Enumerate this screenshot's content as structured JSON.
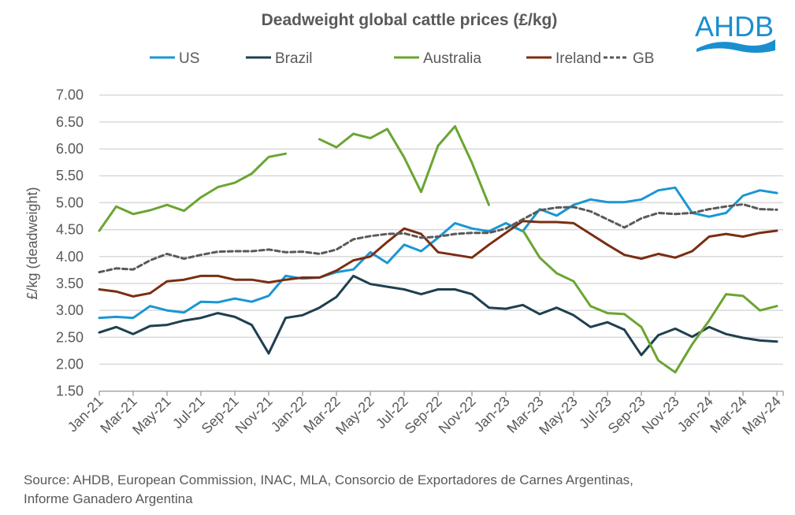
{
  "chart_data": {
    "type": "line",
    "title": "Deadweight global cattle prices (£/kg)",
    "ylabel": "£/kg (deadweight)",
    "xlabel": "",
    "ylim": [
      1.5,
      7.0
    ],
    "yticks": [
      "1.50",
      "2.00",
      "2.50",
      "3.00",
      "3.50",
      "4.00",
      "4.50",
      "5.00",
      "5.50",
      "6.00",
      "6.50",
      "7.00"
    ],
    "xtick_labels": [
      "Jan-21",
      "Mar-21",
      "May-21",
      "Jul-21",
      "Sep-21",
      "Nov-21",
      "Jan-22",
      "Mar-22",
      "May-22",
      "Jul-22",
      "Sep-22",
      "Nov-22",
      "Jan-23",
      "Mar-23",
      "May-23",
      "Jul-23",
      "Sep-23",
      "Nov-23",
      "Jan-24",
      "Mar-24",
      "May-24"
    ],
    "x": [
      "Jan-21",
      "Feb-21",
      "Mar-21",
      "Apr-21",
      "May-21",
      "Jun-21",
      "Jul-21",
      "Aug-21",
      "Sep-21",
      "Oct-21",
      "Nov-21",
      "Dec-21",
      "Jan-22",
      "Feb-22",
      "Mar-22",
      "Apr-22",
      "May-22",
      "Jun-22",
      "Jul-22",
      "Aug-22",
      "Sep-22",
      "Oct-22",
      "Nov-22",
      "Dec-22",
      "Jan-23",
      "Feb-23",
      "Mar-23",
      "Apr-23",
      "May-23",
      "Jun-23",
      "Jul-23",
      "Aug-23",
      "Sep-23",
      "Oct-23",
      "Nov-23",
      "Dec-23",
      "Jan-24",
      "Feb-24",
      "Mar-24",
      "Apr-24",
      "May-24"
    ],
    "grid": true,
    "legend": "top",
    "series": [
      {
        "name": "US",
        "color": "#1a96d4",
        "dash": false,
        "values": [
          2.86,
          2.88,
          2.86,
          3.08,
          3.0,
          2.96,
          3.16,
          3.15,
          3.22,
          3.16,
          3.27,
          3.64,
          3.59,
          3.61,
          3.71,
          3.76,
          4.08,
          3.88,
          4.22,
          4.1,
          4.35,
          4.62,
          4.52,
          4.47,
          4.62,
          4.47,
          4.88,
          4.76,
          4.96,
          5.06,
          5.01,
          5.01,
          5.06,
          5.23,
          5.28,
          4.81,
          4.74,
          4.81,
          5.13,
          5.23,
          5.18
        ]
      },
      {
        "name": "Brazil",
        "color": "#1f3f4f",
        "dash": false,
        "values": [
          2.59,
          2.69,
          2.56,
          2.71,
          2.73,
          2.81,
          2.86,
          2.95,
          2.88,
          2.73,
          2.2,
          2.86,
          2.91,
          3.05,
          3.25,
          3.64,
          3.49,
          3.44,
          3.39,
          3.3,
          3.39,
          3.39,
          3.3,
          3.05,
          3.03,
          3.1,
          2.93,
          3.05,
          2.91,
          2.69,
          2.78,
          2.64,
          2.17,
          2.54,
          2.66,
          2.51,
          2.69,
          2.56,
          2.49,
          2.44,
          2.42
        ]
      },
      {
        "name": "Australia",
        "color": "#6aa532",
        "dash": false,
        "values": [
          4.48,
          4.93,
          4.79,
          4.86,
          4.96,
          4.85,
          5.1,
          5.29,
          5.37,
          5.54,
          5.85,
          5.91,
          null,
          6.18,
          6.03,
          6.28,
          6.2,
          6.37,
          5.84,
          5.2,
          6.06,
          6.42,
          5.74,
          4.96,
          null,
          4.49,
          3.98,
          3.69,
          3.54,
          3.08,
          2.95,
          2.93,
          2.69,
          2.07,
          1.85,
          2.37,
          2.81,
          3.3,
          3.27,
          3.0,
          3.08
        ]
      },
      {
        "name": "Ireland",
        "color": "#7a2e12",
        "dash": false,
        "values": [
          3.39,
          3.35,
          3.26,
          3.32,
          3.54,
          3.57,
          3.64,
          3.64,
          3.57,
          3.57,
          3.52,
          3.57,
          3.61,
          3.61,
          3.74,
          3.93,
          4.0,
          4.27,
          4.52,
          4.42,
          4.08,
          4.03,
          3.98,
          4.22,
          4.44,
          4.66,
          4.64,
          4.64,
          4.62,
          4.42,
          4.22,
          4.03,
          3.96,
          4.05,
          3.98,
          4.1,
          4.37,
          4.42,
          4.37,
          4.44,
          4.48
        ]
      },
      {
        "name": "GB",
        "color": "#595959",
        "dash": true,
        "values": [
          3.71,
          3.78,
          3.76,
          3.93,
          4.05,
          3.96,
          4.03,
          4.09,
          4.1,
          4.1,
          4.13,
          4.08,
          4.09,
          4.05,
          4.13,
          4.32,
          4.38,
          4.42,
          4.43,
          4.35,
          4.37,
          4.42,
          4.44,
          4.44,
          4.52,
          4.69,
          4.86,
          4.91,
          4.92,
          4.84,
          4.69,
          4.54,
          4.71,
          4.81,
          4.79,
          4.81,
          4.88,
          4.93,
          4.97,
          4.88,
          4.87
        ]
      }
    ]
  },
  "logo": {
    "text": "AHDB",
    "color": "#1a8fd0"
  },
  "source": "Source: AHDB, European Commission, INAC, MLA, Consorcio de Exportadores de Carnes Argentinas, Informe Ganadero Argentina"
}
